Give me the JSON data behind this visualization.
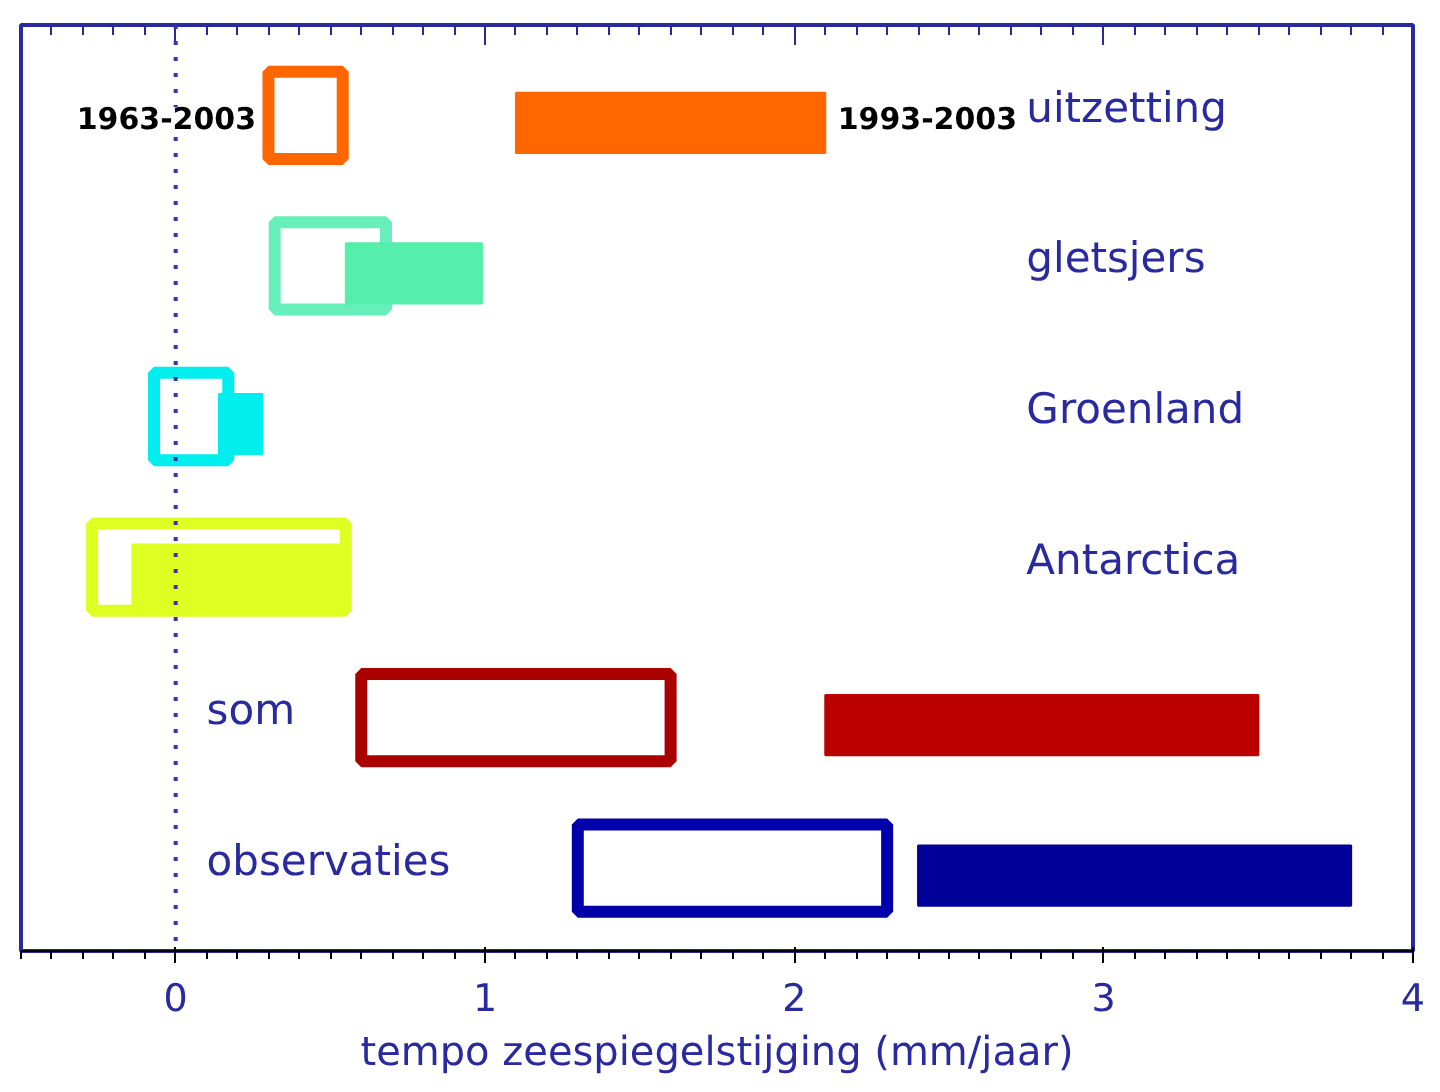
{
  "chart_data": {
    "type": "bar",
    "orientation": "horizontal",
    "xlabel": "tempo zeespiegelstijging (mm/jaar)",
    "categories": [
      "uitzetting",
      "gletsjers",
      "Groenland",
      "Antarctica",
      "som",
      "observaties"
    ],
    "xlim": [
      -0.5,
      4
    ],
    "xticks": [
      0,
      1,
      2,
      3,
      4
    ],
    "grid": false,
    "legend": false,
    "series": [
      {
        "name": "1963-2003",
        "colors": [
          "#ff6600",
          "#66eebb",
          "#00eeee",
          "#ddff22",
          "#aa0000",
          "#0000aa"
        ],
        "base": [
          0.3,
          0.32,
          -0.07,
          -0.27,
          0.6,
          1.3
        ],
        "values": [
          0.24,
          0.36,
          0.24,
          0.82,
          1.0,
          1.0
        ]
      },
      {
        "name": "1993-2003",
        "colors": [
          "#ff6600",
          "#55eeaa",
          "#00eeee",
          "#ddff22",
          "#bb0000",
          "#000099"
        ],
        "base": [
          1.1,
          0.55,
          0.14,
          -0.14,
          2.1,
          2.4
        ],
        "values": [
          1.0,
          0.44,
          0.14,
          0.7,
          1.4,
          1.4
        ]
      }
    ],
    "ref_lines": [
      {
        "axis": "x",
        "value": 0,
        "label": null,
        "color": "#3333aa",
        "line_style": "dotted"
      }
    ]
  }
}
